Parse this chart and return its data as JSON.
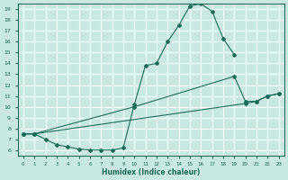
{
  "xlabel": "Humidex (Indice chaleur)",
  "background_color": "#c8e8e2",
  "grid_color": "#ffffff",
  "line_color": "#1a6b5a",
  "xlim": [
    -0.5,
    23.5
  ],
  "ylim": [
    5.5,
    19.5
  ],
  "xticks": [
    0,
    1,
    2,
    3,
    4,
    5,
    6,
    7,
    8,
    9,
    10,
    11,
    12,
    13,
    14,
    15,
    16,
    17,
    18,
    19,
    20,
    21,
    22,
    23
  ],
  "yticks": [
    6,
    7,
    8,
    9,
    10,
    11,
    12,
    13,
    14,
    15,
    16,
    17,
    18,
    19
  ],
  "line1_x": [
    0,
    1,
    2,
    3,
    4,
    5,
    6,
    7,
    8,
    9,
    10,
    11,
    12,
    13,
    14,
    15,
    16,
    17,
    18,
    19
  ],
  "line1_y": [
    7.5,
    7.5,
    7.0,
    6.5,
    6.3,
    6.1,
    6.0,
    6.0,
    6.0,
    6.2,
    10.2,
    13.8,
    14.0,
    16.0,
    17.5,
    19.3,
    19.5,
    18.8,
    16.3,
    14.8
  ],
  "line2_x": [
    0,
    1,
    10,
    19,
    20,
    21,
    22,
    23
  ],
  "line2_y": [
    7.5,
    7.5,
    10.0,
    12.8,
    10.5,
    10.5,
    11.0,
    11.2
  ],
  "line3_x": [
    0,
    1,
    20,
    21,
    22,
    23
  ],
  "line3_y": [
    7.5,
    7.5,
    10.3,
    10.5,
    11.0,
    11.2
  ]
}
